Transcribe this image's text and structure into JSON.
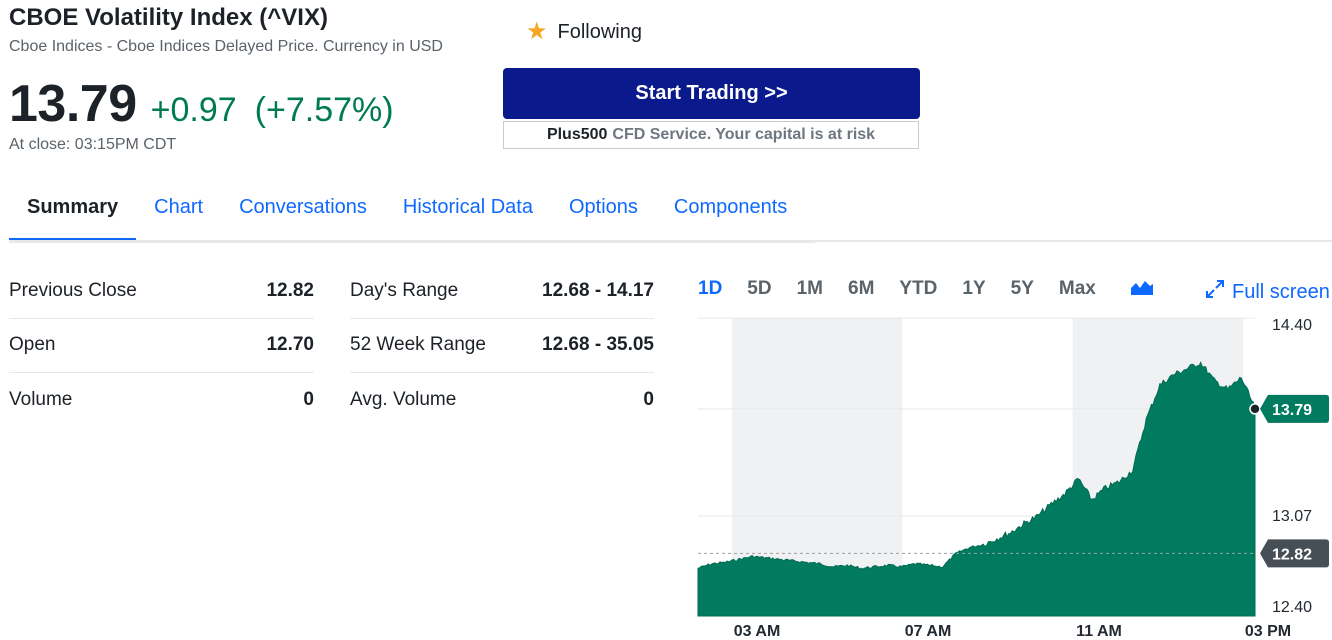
{
  "header": {
    "title": "CBOE Volatility Index (^VIX)",
    "subtitle": "Cboe Indices - Cboe Indices Delayed Price. Currency in USD",
    "price": "13.79",
    "change": "+0.97",
    "change_pct": "(+7.57%)",
    "close_time": "At close: 03:15PM CDT",
    "following_label": "Following",
    "trade_button": "Start Trading >>",
    "disclaimer_brand": "Plus500",
    "disclaimer_text": "CFD Service. Your capital is at risk"
  },
  "colors": {
    "accent": "#0f69ff",
    "up": "#007b50",
    "trade_btn": "#0a1a8c",
    "chart_fill": "#007b5f"
  },
  "tabs": [
    {
      "label": "Summary",
      "active": true
    },
    {
      "label": "Chart"
    },
    {
      "label": "Conversations"
    },
    {
      "label": "Historical Data"
    },
    {
      "label": "Options"
    },
    {
      "label": "Components"
    }
  ],
  "stats_left": [
    {
      "label": "Previous Close",
      "value": "12.82"
    },
    {
      "label": "Open",
      "value": "12.70"
    },
    {
      "label": "Volume",
      "value": "0"
    }
  ],
  "stats_right": [
    {
      "label": "Day's Range",
      "value": "12.68 - 14.17"
    },
    {
      "label": "52 Week Range",
      "value": "12.68 - 35.05"
    },
    {
      "label": "Avg. Volume",
      "value": "0"
    }
  ],
  "chart_controls": {
    "ranges": [
      "1D",
      "5D",
      "1M",
      "6M",
      "YTD",
      "1Y",
      "5Y",
      "Max"
    ],
    "active_range": "1D",
    "chart_type_icon": "mountain-chart-icon",
    "fullscreen_label": "Full screen",
    "fullscreen_icon": "expand-icon"
  },
  "chart_data": {
    "type": "area",
    "y_ticks": [
      "14.40",
      "13.07",
      "12.40"
    ],
    "x_ticks": [
      "03 AM",
      "07 AM",
      "11 AM",
      "03 PM"
    ],
    "ylim": [
      12.4,
      14.4
    ],
    "current_price_tag": "13.79",
    "previous_close_tag": "12.82",
    "previous_close": 12.82,
    "current": 13.79,
    "shaded_periods": [
      [
        "03 AM",
        "07 AM"
      ],
      [
        "11 AM",
        "03 PM"
      ]
    ],
    "x": [
      "01:20 AM",
      "01:40 AM",
      "02:00 AM",
      "02:20 AM",
      "02:40 AM",
      "03:00 AM",
      "03:20 AM",
      "03:40 AM",
      "04:00 AM",
      "04:20 AM",
      "04:40 AM",
      "05:00 AM",
      "05:20 AM",
      "05:40 AM",
      "06:00 AM",
      "06:20 AM",
      "06:40 AM",
      "07:00 AM",
      "07:20 AM",
      "07:40 AM",
      "08:00 AM",
      "08:20 AM",
      "08:40 AM",
      "09:00 AM",
      "09:20 AM",
      "09:40 AM",
      "10:00 AM",
      "10:20 AM",
      "10:40 AM",
      "11:00 AM",
      "11:20 AM",
      "11:40 AM",
      "12:00 PM",
      "12:20 PM",
      "12:40 PM",
      "01:00 PM",
      "01:20 PM",
      "01:40 PM",
      "02:00 PM",
      "02:20 PM",
      "02:40 PM",
      "03:00 PM"
    ],
    "values": [
      12.72,
      12.75,
      12.76,
      12.78,
      12.8,
      12.79,
      12.78,
      12.77,
      12.76,
      12.75,
      12.73,
      12.74,
      12.72,
      12.73,
      12.74,
      12.73,
      12.75,
      12.74,
      12.73,
      12.82,
      12.86,
      12.88,
      12.92,
      12.96,
      13.02,
      13.07,
      13.15,
      13.22,
      13.32,
      13.18,
      13.26,
      13.3,
      13.38,
      13.72,
      13.95,
      14.02,
      14.06,
      14.1,
      13.98,
      13.92,
      14.0,
      13.79
    ]
  }
}
